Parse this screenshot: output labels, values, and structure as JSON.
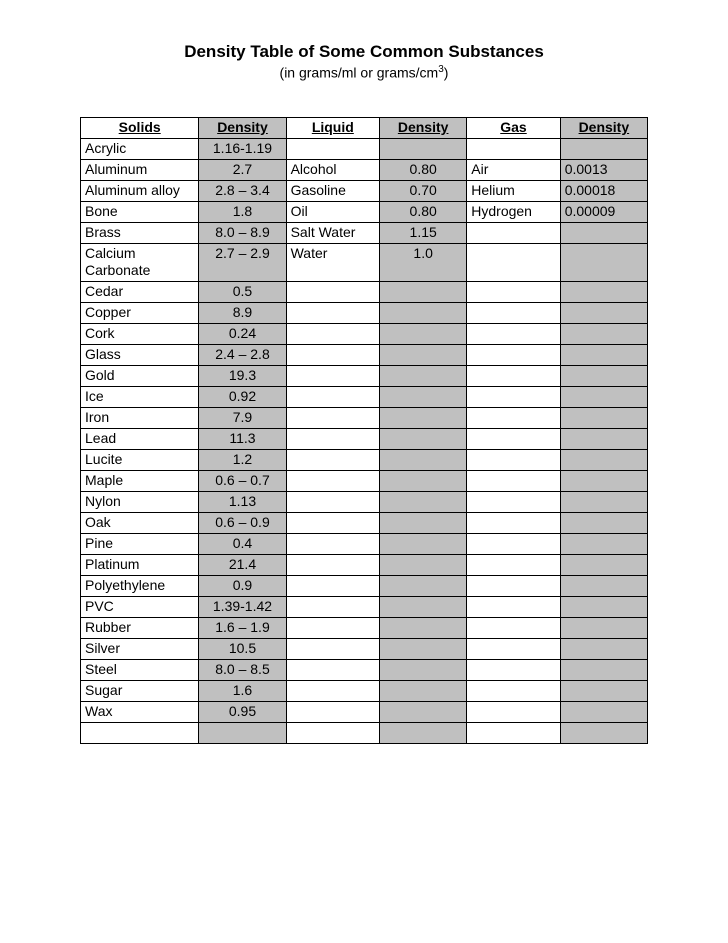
{
  "title": "Density Table of Some Common Substances",
  "subtitle_prefix": "(in grams/ml or grams/cm",
  "subtitle_sup": "3",
  "subtitle_suffix": ")",
  "colors": {
    "shaded": "#c0c0c0",
    "background": "#ffffff",
    "border": "#000000",
    "text": "#000000"
  },
  "fontsize_body": 14,
  "fontsize_title": 17,
  "columns": [
    {
      "label": "Solids",
      "align": "center",
      "width_pct": 19
    },
    {
      "label": "Density",
      "align": "center",
      "width_pct": 14,
      "shaded": true
    },
    {
      "label": "Liquid",
      "align": "center",
      "width_pct": 15
    },
    {
      "label": "Density",
      "align": "center",
      "width_pct": 14,
      "shaded": true
    },
    {
      "label": "Gas",
      "align": "center",
      "width_pct": 15
    },
    {
      "label": "Density",
      "align": "center",
      "width_pct": 14,
      "shaded": true
    }
  ],
  "rows": [
    {
      "solid": "Acrylic",
      "sd": "1.16-1.19",
      "liquid": "",
      "ld": "",
      "gas": "",
      "gd": ""
    },
    {
      "solid": "Aluminum",
      "sd": "2.7",
      "liquid": "Alcohol",
      "ld": "0.80",
      "gas": "Air",
      "gd": "0.0013"
    },
    {
      "solid": "Aluminum alloy",
      "sd": "2.8 – 3.4",
      "liquid": "Gasoline",
      "ld": "0.70",
      "gas": "Helium",
      "gd": "0.00018"
    },
    {
      "solid": "Bone",
      "sd": "1.8",
      "liquid": "Oil",
      "ld": "0.80",
      "gas": "Hydrogen",
      "gd": "0.00009"
    },
    {
      "solid": "Brass",
      "sd": "8.0 – 8.9",
      "liquid": "Salt Water",
      "ld": "1.15",
      "gas": "",
      "gd": ""
    },
    {
      "solid": "Calcium Carbonate",
      "sd": "2.7 – 2.9",
      "liquid": "Water",
      "ld": "1.0",
      "gas": "",
      "gd": ""
    },
    {
      "solid": "Cedar",
      "sd": "0.5",
      "liquid": "",
      "ld": "",
      "gas": "",
      "gd": ""
    },
    {
      "solid": "Copper",
      "sd": "8.9",
      "liquid": "",
      "ld": "",
      "gas": "",
      "gd": ""
    },
    {
      "solid": "Cork",
      "sd": "0.24",
      "liquid": "",
      "ld": "",
      "gas": "",
      "gd": ""
    },
    {
      "solid": "Glass",
      "sd": "2.4 – 2.8",
      "liquid": "",
      "ld": "",
      "gas": "",
      "gd": ""
    },
    {
      "solid": "Gold",
      "sd": "19.3",
      "liquid": "",
      "ld": "",
      "gas": "",
      "gd": ""
    },
    {
      "solid": "Ice",
      "sd": "0.92",
      "liquid": "",
      "ld": "",
      "gas": "",
      "gd": ""
    },
    {
      "solid": "Iron",
      "sd": "7.9",
      "liquid": "",
      "ld": "",
      "gas": "",
      "gd": ""
    },
    {
      "solid": "Lead",
      "sd": "11.3",
      "liquid": "",
      "ld": "",
      "gas": "",
      "gd": ""
    },
    {
      "solid": "Lucite",
      "sd": "1.2",
      "liquid": "",
      "ld": "",
      "gas": "",
      "gd": ""
    },
    {
      "solid": "Maple",
      "sd": "0.6 – 0.7",
      "liquid": "",
      "ld": "",
      "gas": "",
      "gd": ""
    },
    {
      "solid": "Nylon",
      "sd": "1.13",
      "liquid": "",
      "ld": "",
      "gas": "",
      "gd": ""
    },
    {
      "solid": "Oak",
      "sd": "0.6 – 0.9",
      "liquid": "",
      "ld": "",
      "gas": "",
      "gd": ""
    },
    {
      "solid": "Pine",
      "sd": "0.4",
      "liquid": "",
      "ld": "",
      "gas": "",
      "gd": ""
    },
    {
      "solid": "Platinum",
      "sd": "21.4",
      "liquid": "",
      "ld": "",
      "gas": "",
      "gd": ""
    },
    {
      "solid": "Polyethylene",
      "sd": "0.9",
      "liquid": "",
      "ld": "",
      "gas": "",
      "gd": ""
    },
    {
      "solid": "PVC",
      "sd": "1.39-1.42",
      "liquid": "",
      "ld": "",
      "gas": "",
      "gd": ""
    },
    {
      "solid": "Rubber",
      "sd": "1.6 – 1.9",
      "liquid": "",
      "ld": "",
      "gas": "",
      "gd": ""
    },
    {
      "solid": "Silver",
      "sd": "10.5",
      "liquid": "",
      "ld": "",
      "gas": "",
      "gd": ""
    },
    {
      "solid": "Steel",
      "sd": "8.0 – 8.5",
      "liquid": "",
      "ld": "",
      "gas": "",
      "gd": ""
    },
    {
      "solid": "Sugar",
      "sd": "1.6",
      "liquid": "",
      "ld": "",
      "gas": "",
      "gd": ""
    },
    {
      "solid": "Wax",
      "sd": "0.95",
      "liquid": "",
      "ld": "",
      "gas": "",
      "gd": ""
    },
    {
      "solid": "",
      "sd": "",
      "liquid": "",
      "ld": "",
      "gas": "",
      "gd": ""
    }
  ],
  "density_align_left_gas": true
}
